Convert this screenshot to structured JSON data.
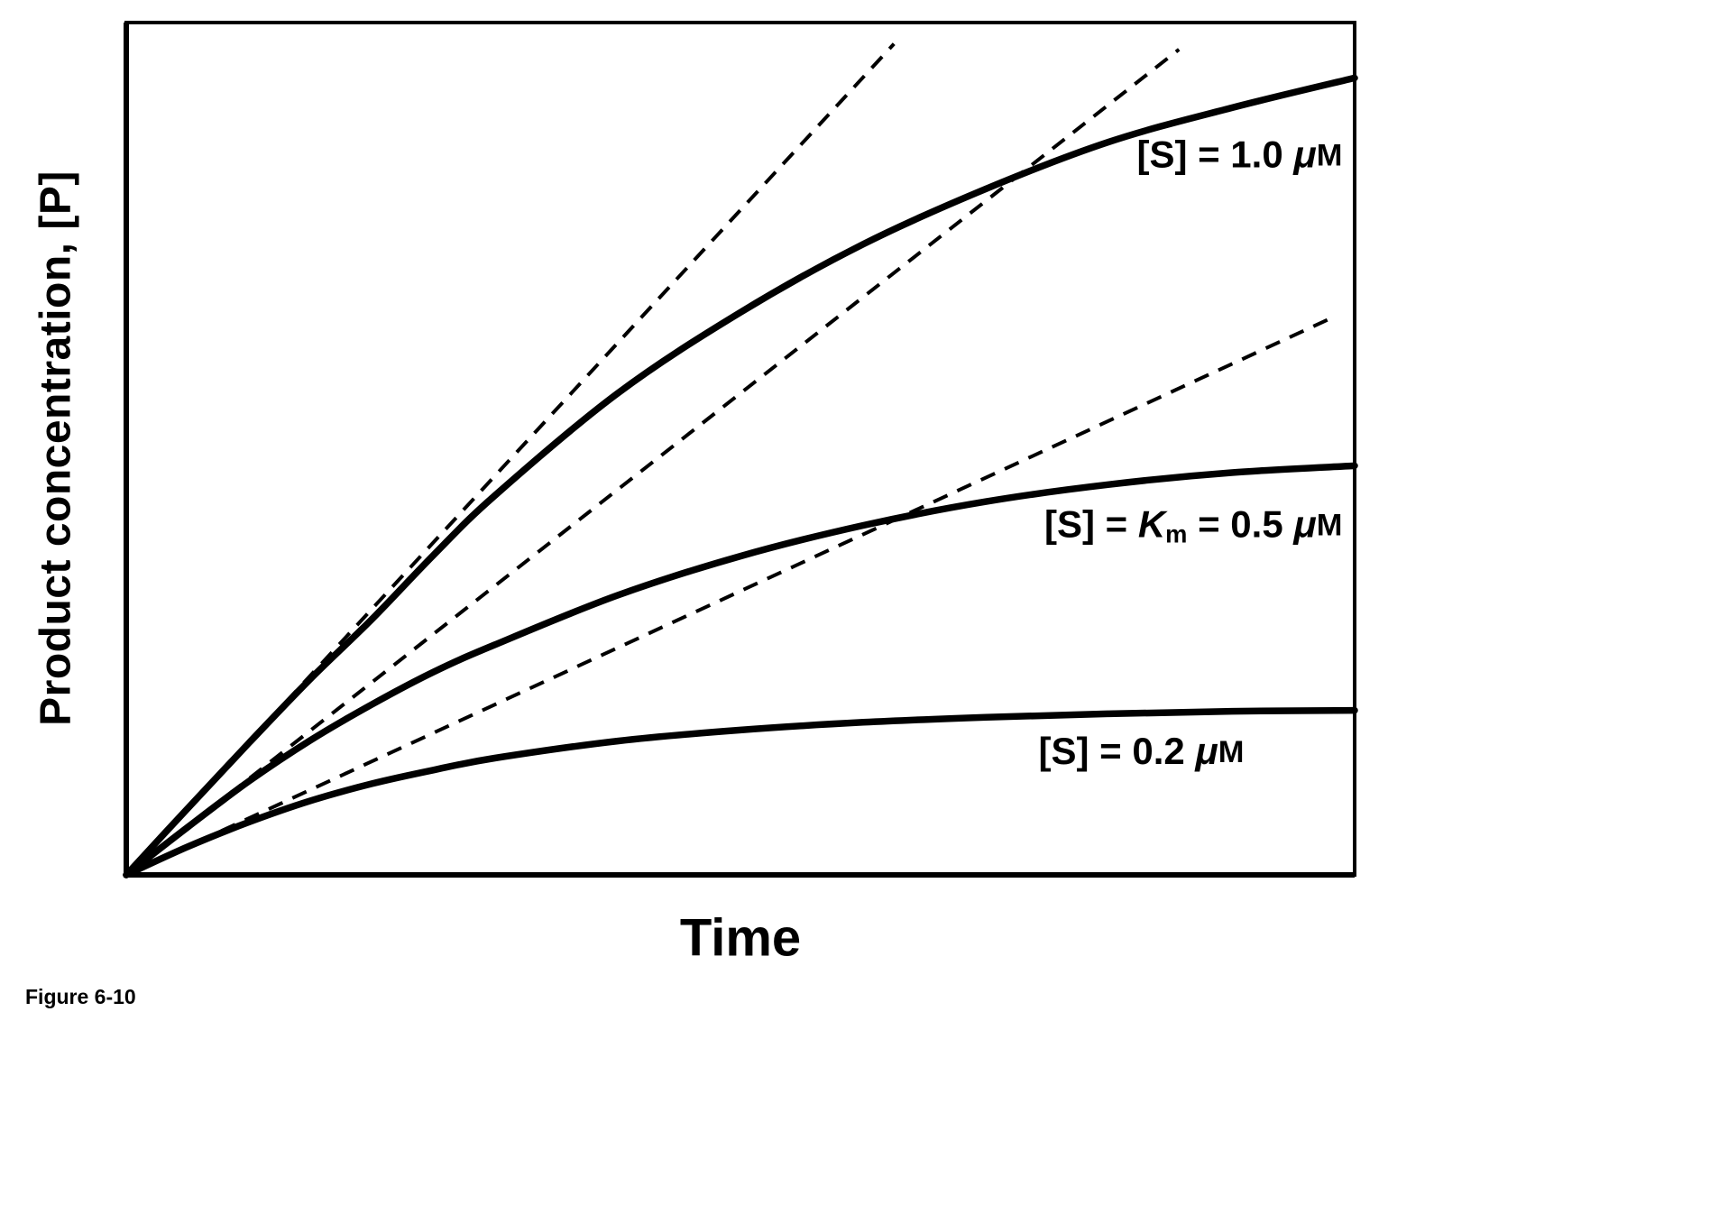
{
  "figure": {
    "caption": "Figure 6-10"
  },
  "chart_data": {
    "type": "line",
    "title": "",
    "xlabel": "Time",
    "ylabel": "Product concentration, [P]",
    "x_range": [
      0,
      10
    ],
    "y_range": [
      0,
      10
    ],
    "grid": false,
    "tick_labels": "none",
    "legend": "inline-annotations",
    "line_color": "#000000",
    "background": "#ffffff",
    "series": [
      {
        "name": "[S] = 1.0 μM",
        "label_parts": [
          {
            "t": "[S] = 1.0 "
          },
          {
            "t": "μ",
            "i": true
          },
          {
            "t": "M",
            "sm": true
          }
        ],
        "label_anchor": {
          "x": 9.9,
          "y": 8.42,
          "align": "end"
        },
        "x": [
          0,
          0.5,
          1,
          1.5,
          2,
          2.5,
          3,
          4,
          5,
          6,
          7,
          8,
          9,
          10
        ],
        "y": [
          0,
          0.78,
          1.55,
          2.3,
          3.0,
          3.75,
          4.45,
          5.65,
          6.6,
          7.4,
          8.05,
          8.6,
          9.0,
          9.35
        ]
      },
      {
        "name": "[S] = Km = 0.5 μM",
        "label_parts": [
          {
            "t": "[S] = "
          },
          {
            "t": "K",
            "i": true
          },
          {
            "t": "m",
            "sub": true
          },
          {
            "t": " = 0.5 "
          },
          {
            "t": "μ",
            "i": true
          },
          {
            "t": "M",
            "sm": true
          }
        ],
        "label_anchor": {
          "x": 9.9,
          "y": 4.08,
          "align": "end"
        },
        "x": [
          0,
          0.5,
          1,
          1.5,
          2,
          2.5,
          3,
          4,
          5,
          6,
          7,
          8,
          9,
          10
        ],
        "y": [
          0,
          0.56,
          1.1,
          1.58,
          2.0,
          2.38,
          2.7,
          3.28,
          3.74,
          4.1,
          4.38,
          4.58,
          4.72,
          4.8
        ]
      },
      {
        "name": "[S] = 0.2 μM",
        "label_parts": [
          {
            "t": "[S] = 0.2 "
          },
          {
            "t": "μ",
            "i": true
          },
          {
            "t": "M",
            "sm": true
          }
        ],
        "label_anchor": {
          "x": 9.1,
          "y": 1.42,
          "align": "end"
        },
        "x": [
          0,
          0.5,
          1,
          1.5,
          2,
          2.5,
          3,
          4,
          5,
          6,
          7,
          8,
          9,
          10
        ],
        "y": [
          0,
          0.33,
          0.62,
          0.87,
          1.07,
          1.23,
          1.37,
          1.57,
          1.7,
          1.79,
          1.85,
          1.89,
          1.92,
          1.93
        ]
      }
    ],
    "initial_velocity_tangents": [
      {
        "for": "[S] = 1.0 μM",
        "slope": 1.56,
        "x_start": 0,
        "x_end": 6.25
      },
      {
        "for": "[S] = Km = 0.5 μM",
        "slope": 1.13,
        "x_start": 0,
        "x_end": 8.57
      },
      {
        "for": "[S] = 0.2 μM",
        "slope": 0.666,
        "x_start": 0,
        "x_end": 9.82
      }
    ]
  }
}
